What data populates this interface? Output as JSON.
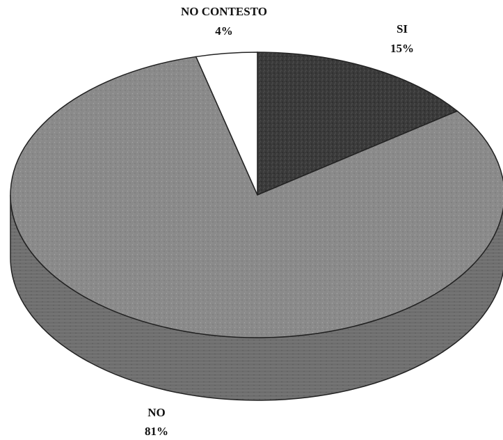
{
  "chart_data": {
    "type": "pie",
    "style": "3d",
    "title": "",
    "slices": [
      {
        "label": "SI",
        "value": 15,
        "value_label": "15%",
        "color": "#3a3a3a"
      },
      {
        "label": "NO",
        "value": 81,
        "value_label": "81%",
        "color": "#8a8a8a"
      },
      {
        "label": "NO CONTESTO",
        "value": 4,
        "value_label": "4%",
        "color": "#ffffff"
      }
    ],
    "legend": "none"
  }
}
